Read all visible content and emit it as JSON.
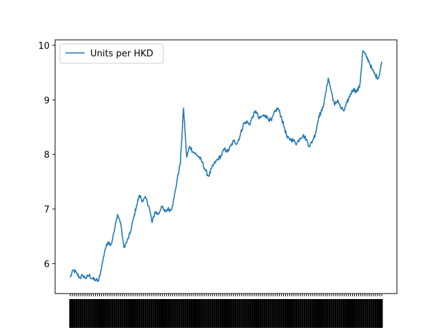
{
  "chart_data": {
    "type": "line",
    "title": "",
    "xlabel": "",
    "ylabel": "",
    "x_tick_labels_visible": "dense overlapping black tick labels (illegible)",
    "ylim": [
      5.45,
      10.1
    ],
    "y_ticks": [
      6,
      7,
      8,
      9,
      10
    ],
    "grid": false,
    "legend": {
      "position": "top-left"
    },
    "series": [
      {
        "name": "Units per HKD",
        "color": "#1f77b4",
        "y": [
          5.75,
          5.88,
          5.82,
          5.74,
          5.78,
          5.73,
          5.79,
          5.72,
          5.7,
          5.68,
          5.95,
          6.25,
          6.4,
          6.35,
          6.6,
          6.9,
          6.75,
          6.3,
          6.4,
          6.55,
          6.8,
          7.05,
          7.25,
          7.15,
          7.2,
          7.05,
          6.75,
          6.95,
          6.9,
          7.05,
          6.95,
          7.0,
          6.98,
          7.2,
          7.55,
          7.85,
          8.85,
          7.95,
          8.15,
          8.05,
          8.0,
          7.95,
          7.85,
          7.7,
          7.6,
          7.75,
          7.85,
          7.92,
          7.98,
          8.1,
          8.05,
          8.15,
          8.25,
          8.2,
          8.35,
          8.55,
          8.6,
          8.55,
          8.7,
          8.8,
          8.65,
          8.7,
          8.72,
          8.65,
          8.62,
          8.78,
          8.85,
          8.7,
          8.5,
          8.3,
          8.28,
          8.25,
          8.2,
          8.3,
          8.35,
          8.28,
          8.15,
          8.25,
          8.4,
          8.7,
          8.8,
          9.05,
          9.4,
          9.15,
          8.9,
          9.0,
          8.85,
          8.8,
          8.95,
          9.1,
          9.2,
          9.15,
          9.25,
          9.9,
          9.8,
          9.7,
          9.55,
          9.45,
          9.4,
          9.7
        ]
      }
    ]
  }
}
